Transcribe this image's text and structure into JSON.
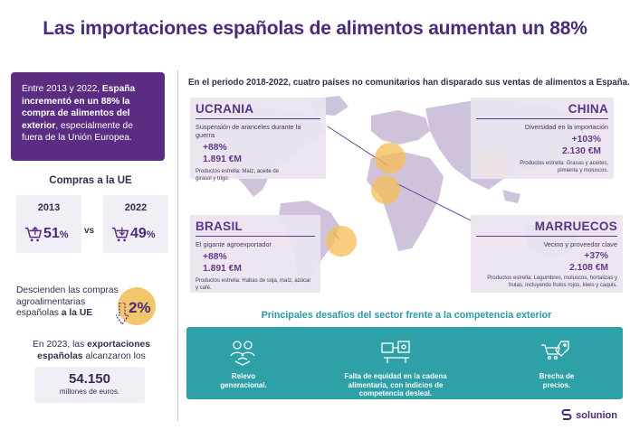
{
  "title": "Las importaciones españolas de alimentos aumentan un 88%",
  "intro": {
    "p1": "Entre 2013 y 2022, ",
    "b1": "España incrementó en un 88% la compra de alimentos del exterior",
    "p2": ", especialmente de fuera de la Unión Europea."
  },
  "eu": {
    "heading": "Compras a la UE",
    "y1": {
      "year": "2013",
      "value": "51",
      "unit": "%"
    },
    "vs": "vs",
    "y2": {
      "year": "2022",
      "value": "49",
      "unit": "%"
    }
  },
  "decline": {
    "t1": "Descienden las compras agroalimentarias españolas ",
    "b": "a la UE",
    "value": "2%"
  },
  "exports": {
    "t1": "En 2023, las ",
    "b": "exportaciones españolas",
    "t2": " alcanzaron los",
    "amount": "54.150",
    "unit": "millones de euros."
  },
  "map_subtitle": "En el periodo 2018-2022, cuatro países no comunitarios han disparado sus ventas de alimentos a España.",
  "countries": {
    "ucrania": {
      "name": "UCRANIA",
      "tag": "Suspensión de aranceles durante la guerra",
      "pct": "+88%",
      "amount": "1.891 €M",
      "star": "Productos estrella: Maíz, aceite de girasol y trigo."
    },
    "china": {
      "name": "CHINA",
      "tag": "Diversidad en la importación",
      "pct": "+103%",
      "amount": "2.130 €M",
      "star": "Productos estrella: Grasas y aceites, pimienta y moluscos."
    },
    "brasil": {
      "name": "BRASIL",
      "tag": "El gigante agroexportador",
      "pct": "+88%",
      "amount": "1.891 €M",
      "star": "Productos estrella: Habas de soja, maíz, azúcar y café."
    },
    "marruecos": {
      "name": "MARRUECOS",
      "tag": "Vecino y proveedor clave",
      "pct": "+37%",
      "amount": "2.108 €M",
      "star": "Productos estrella: Legumbres, moluscos, hortalizas y frutas, incluyendo frutos rojos, kiwis y caquis."
    }
  },
  "challenges": {
    "heading": "Principales desafíos del sector frente a la competencia exterior",
    "items": [
      {
        "label": "Relevo generacional.",
        "icon": "generational-handover-icon"
      },
      {
        "label": "Falta de equidad en la cadena alimentaria, con indicios de competencia desleal.",
        "icon": "food-chain-icon"
      },
      {
        "label": "Brecha de precios.",
        "icon": "price-gap-icon"
      }
    ]
  },
  "brand": "solunion",
  "colors": {
    "purple": "#5a2d82",
    "teal": "#2da0a8",
    "yellow": "#f2c66a",
    "lilac": "#ece5f1"
  }
}
